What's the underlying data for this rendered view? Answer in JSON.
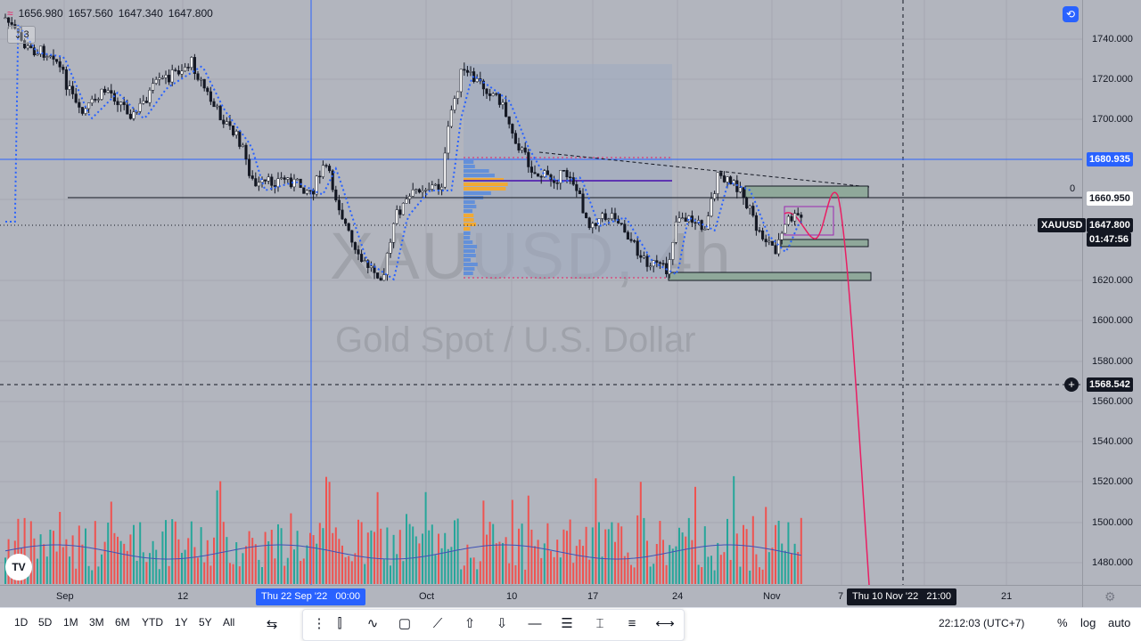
{
  "symbol": "XAUUSD",
  "countdown": "01:47:56",
  "watermark": {
    "symbol_tf": "XAUUSD, 4h",
    "description": "Gold Spot / U.S. Dollar"
  },
  "legend": {
    "indicator_count": "3",
    "open": "1656.980",
    "high": "1657.560",
    "low": "1647.340",
    "close": "1647.800"
  },
  "price_axis": {
    "ticks": [
      "1740.000",
      "1720.000",
      "1700.000",
      "1660.000",
      "1620.000",
      "1600.000",
      "1580.000",
      "1560.000",
      "1540.000",
      "1520.000",
      "1500.000",
      "1480.000"
    ],
    "labels": [
      {
        "text": "1680.935",
        "style": "blue"
      },
      {
        "text": "1660.950",
        "style": "white"
      },
      {
        "text": "1647.800",
        "style": "dark"
      },
      {
        "text": "1568.542",
        "style": "dark"
      }
    ],
    "symbol_tag": "XAUUSD",
    "zero_marker": "0"
  },
  "time_axis": {
    "ticks": [
      "Sep",
      "12",
      "Oct",
      "10",
      "17",
      "24",
      "Nov",
      "7",
      "21"
    ],
    "crosshair_left": "Thu 22 Sep '22   00:00",
    "crosshair_right": "Thu 10 Nov '22   21:00"
  },
  "bottom": {
    "timeframes": [
      "1D",
      "5D",
      "1M",
      "3M",
      "6M",
      "YTD",
      "1Y",
      "5Y",
      "All"
    ],
    "clock": "22:12:03 (UTC+7)",
    "toggles": [
      "%",
      "log",
      "auto"
    ]
  },
  "colors": {
    "up": "#26a69a",
    "down": "#ef5350",
    "bg": "#b2b5be",
    "accent": "#2962ff",
    "forecast": "#e91e63"
  },
  "icons": [
    "tv-logo-icon",
    "compare-icon",
    "fullscreen-icon",
    "settings-icon"
  ]
}
